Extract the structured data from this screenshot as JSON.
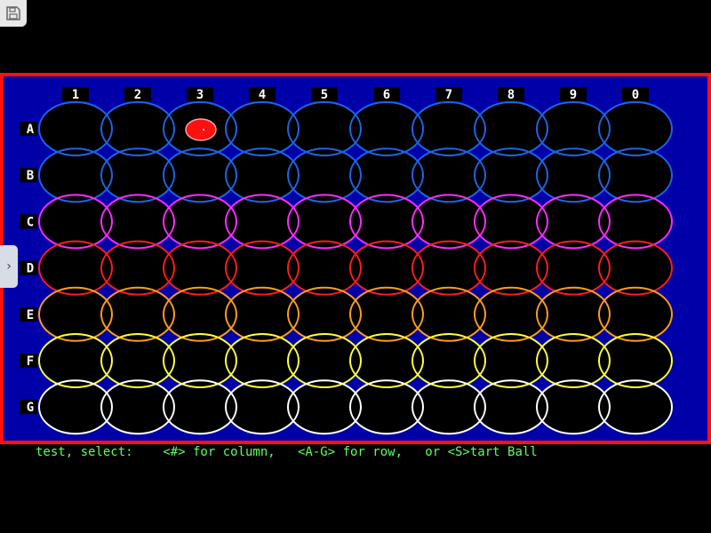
{
  "toolbar": {
    "save_icon": "floppy-disk-icon",
    "side_tab_icon": "chevron-right-icon"
  },
  "board": {
    "columns": [
      "1",
      "2",
      "3",
      "4",
      "5",
      "6",
      "7",
      "8",
      "9",
      "0"
    ],
    "rows": [
      {
        "label": "A",
        "color": "#1e64e6"
      },
      {
        "label": "B",
        "color": "#1e64e6"
      },
      {
        "label": "C",
        "color": "#ff2cff"
      },
      {
        "label": "D",
        "color": "#ff1c1c"
      },
      {
        "label": "E",
        "color": "#ff9c1c"
      },
      {
        "label": "F",
        "color": "#ffff40"
      },
      {
        "label": "G",
        "color": "#ffffff"
      }
    ],
    "ball": {
      "row": "A",
      "column": "3",
      "color": "#ff1010"
    },
    "frame_color": "#ff1010",
    "background_color": "#0000a8"
  },
  "status": {
    "text": "test, select:    <#> for column,   <A-G> for row,   or <S>tart Ball"
  }
}
